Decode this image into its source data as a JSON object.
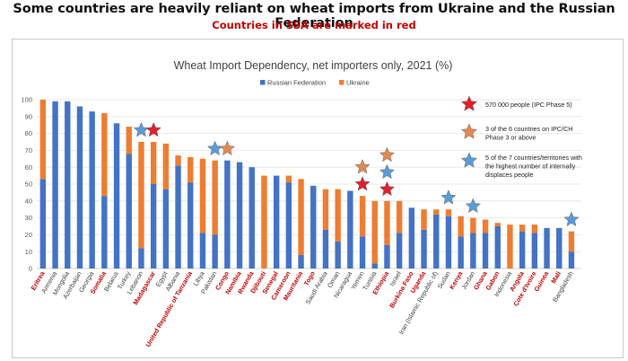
{
  "headline": "Some countries are heavily reliant on wheat imports from Ukraine and the Russian Federation",
  "subheadline": "Countries in SSA are marked in red",
  "colors": {
    "russia": "#4472c4",
    "ukraine": "#ed7d31",
    "ssa_label": "#c00000",
    "other_label": "#404040",
    "star_red": "#e0202e",
    "star_orange": "#e08a52",
    "star_blue": "#5b9bd5"
  },
  "chart_data": {
    "type": "bar",
    "stacked": true,
    "title": "Wheat Import Dependency, net importers only, 2021 (%)",
    "ylim": [
      0,
      100
    ],
    "yticks": [
      0,
      10,
      20,
      30,
      40,
      50,
      60,
      70,
      80,
      90,
      100
    ],
    "grid": true,
    "legend_position": "top",
    "categories": [
      "Eritrea",
      "Armenia",
      "Mongolia",
      "Azerbaijan",
      "Georgia",
      "Somalia",
      "Belarus",
      "Turkey",
      "Lebanon",
      "Madagascar",
      "Egypt",
      "Albania",
      "United Republic of Tanzania",
      "Libya",
      "Pakistan",
      "Congo",
      "Namibia",
      "Rwanda",
      "Djibouti",
      "Senegal",
      "Cameroon",
      "Mauritania",
      "Togo",
      "Saudi Arabia",
      "Oman",
      "Nicaragua",
      "Yemen",
      "Tunisia",
      "Ethiopia",
      "Israel",
      "Burkina Faso",
      "Uganda",
      "Iran (Islamic Republic of)",
      "Sudan",
      "Kenya",
      "Jordan",
      "Ghana",
      "Gabon",
      "Indonesia",
      "Angola",
      "Cote d'Ivoire",
      "Guinea",
      "Mali",
      "Bangladesh"
    ],
    "ssa": [
      true,
      false,
      false,
      false,
      false,
      true,
      false,
      false,
      false,
      true,
      false,
      false,
      true,
      false,
      false,
      true,
      true,
      true,
      true,
      true,
      true,
      true,
      true,
      false,
      false,
      false,
      false,
      false,
      true,
      false,
      true,
      true,
      false,
      false,
      true,
      false,
      true,
      true,
      false,
      true,
      true,
      true,
      true,
      false
    ],
    "series": [
      {
        "name": "Russian Federation",
        "values": [
          53,
          99,
          99,
          96,
          93,
          43,
          86,
          68,
          12,
          50,
          47,
          61,
          51,
          21,
          20,
          64,
          63,
          60,
          0,
          55,
          51,
          8,
          49,
          23,
          16,
          46,
          19,
          3,
          14,
          21,
          36,
          23,
          32,
          31,
          19,
          21,
          21,
          25,
          0,
          22,
          21,
          24,
          24,
          10
        ]
      },
      {
        "name": "Ukraine",
        "values": [
          47,
          0,
          0,
          0,
          0,
          49,
          0,
          16,
          63,
          25,
          27,
          6,
          15,
          44,
          44,
          0,
          0,
          0,
          55,
          0,
          4,
          45,
          0,
          24,
          31,
          0,
          24,
          37,
          26,
          19,
          0,
          12,
          3,
          4,
          12,
          9,
          8,
          2,
          26,
          4,
          5,
          0,
          0,
          12
        ]
      }
    ],
    "markers": [
      {
        "category": "Lebanon",
        "type": "blue"
      },
      {
        "category": "Madagascar",
        "type": "red"
      },
      {
        "category": "Pakistan",
        "type": "blue"
      },
      {
        "category": "Congo",
        "type": "orange"
      },
      {
        "category": "Yemen",
        "type": "red"
      },
      {
        "category": "Yemen",
        "type": "orange"
      },
      {
        "category": "Ethiopia",
        "type": "red"
      },
      {
        "category": "Ethiopia",
        "type": "blue"
      },
      {
        "category": "Ethiopia",
        "type": "orange"
      },
      {
        "category": "Sudan",
        "type": "blue"
      },
      {
        "category": "Jordan",
        "type": "blue"
      },
      {
        "category": "Bangladesh",
        "type": "blue"
      }
    ],
    "marker_legend": [
      {
        "type": "red",
        "lines": [
          "570 000 people (IPC Phase 5)"
        ]
      },
      {
        "type": "orange",
        "lines": [
          "3 of the 6 countries on IPC/CH",
          "Phase 3 or above"
        ]
      },
      {
        "type": "blue",
        "lines": [
          "5 of the 7 countries/territories with",
          "the highest number of internally",
          "displaces people"
        ]
      }
    ]
  }
}
